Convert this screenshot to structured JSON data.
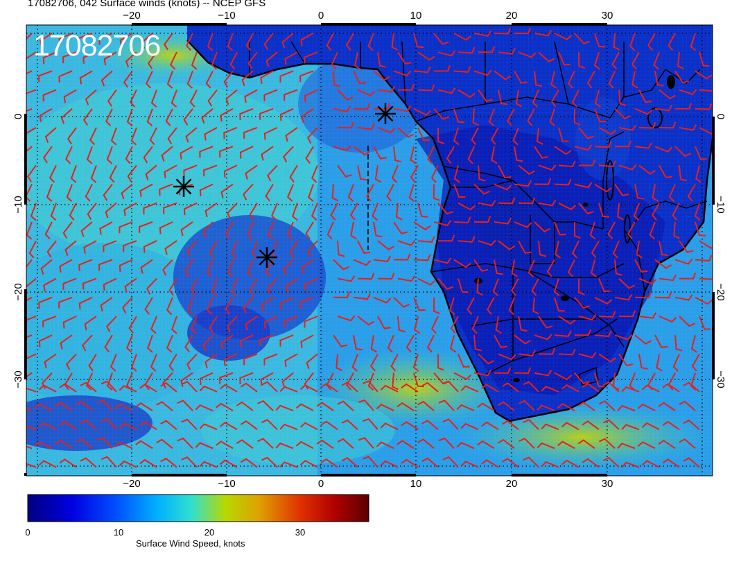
{
  "title": "17082706, 042 Surface winds (knots) -- NCEP GFS",
  "timestamp_overlay": "17082706",
  "map": {
    "lon_ticks": [
      "−20",
      "−10",
      "0",
      "10",
      "20",
      "30"
    ],
    "lat_ticks": [
      "0",
      "−10",
      "−20",
      "−30"
    ],
    "markers": [
      "storm-marker-1",
      "storm-marker-2",
      "storm-marker-3"
    ],
    "barb_color": "#e8201a",
    "coast_color": "#000000"
  },
  "colorbar": {
    "tick_labels": [
      "0",
      "10",
      "20",
      "30"
    ],
    "label": "Surface Wind Speed, knots",
    "colors": [
      "#00007f",
      "#0000ff",
      "#00a0ff",
      "#20e0d0",
      "#c8d400",
      "#ff8c00",
      "#e00000",
      "#7f0000"
    ]
  }
}
